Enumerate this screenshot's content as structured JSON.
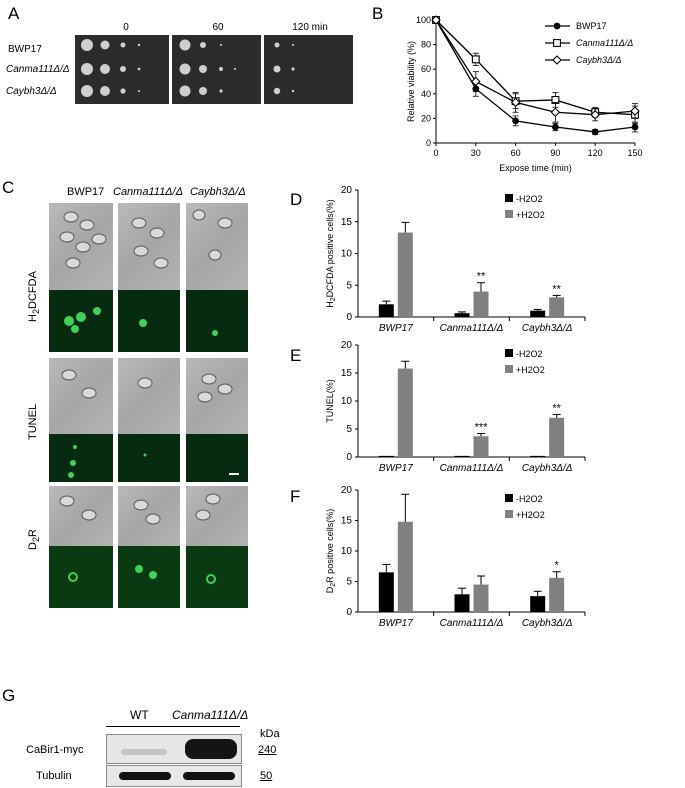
{
  "panels": {
    "a": "A",
    "b": "B",
    "c": "C",
    "d": "D",
    "e": "E",
    "f": "F",
    "g": "G"
  },
  "panel_a": {
    "time_labels": [
      "0",
      "60",
      "120 min"
    ],
    "strains": [
      "BWP17",
      "Canma111Δ/Δ",
      "Caybh3Δ/Δ"
    ]
  },
  "panel_c": {
    "columns": [
      "BWP17",
      "Canma111Δ/Δ",
      "Caybh3Δ/Δ"
    ],
    "rows": [
      "H2DCFDA",
      "TUNEL",
      "D2R"
    ]
  },
  "panel_g": {
    "columns": [
      "WT",
      "Canma111Δ/Δ"
    ],
    "kda_label": "kDa",
    "rows": [
      {
        "label": "CaBir1-myc",
        "kda": "240"
      },
      {
        "label": "Tubulin",
        "kda": "50"
      }
    ]
  },
  "colors": {
    "black_bar": "#000000",
    "grey_bar": "#808080"
  },
  "chart_data": [
    {
      "id": "B",
      "type": "line",
      "xlabel": "Expose time (min)",
      "ylabel": "Relative viability (%)",
      "x": [
        0,
        30,
        60,
        90,
        120,
        150
      ],
      "xlim": [
        0,
        150
      ],
      "ylim": [
        0,
        100
      ],
      "xticks": [
        "0",
        "30",
        "60",
        "90",
        "120",
        "150"
      ],
      "yticks": [
        "0",
        "20",
        "40",
        "60",
        "80",
        "100"
      ],
      "legend_position": "top-right",
      "series": [
        {
          "name": "BWP17",
          "marker": "filled-circle",
          "values": [
            100,
            44,
            18,
            13,
            9,
            13
          ],
          "errors": [
            0,
            6,
            4,
            3,
            2,
            4
          ]
        },
        {
          "name": "Canma111Δ/Δ",
          "marker": "open-square",
          "values": [
            100,
            68,
            34,
            35,
            25,
            23
          ],
          "errors": [
            0,
            5,
            6,
            6,
            4,
            7
          ]
        },
        {
          "name": "Caybh3Δ/Δ",
          "marker": "open-diamond",
          "values": [
            100,
            50,
            33,
            25,
            23,
            26
          ],
          "errors": [
            0,
            8,
            8,
            8,
            5,
            6
          ]
        }
      ]
    },
    {
      "id": "D",
      "type": "bar",
      "ylabel": "H2DCFDA positive cells(%)",
      "categories": [
        "BWP17",
        "Canma111Δ/Δ",
        "Caybh3Δ/Δ"
      ],
      "ylim": [
        0,
        20
      ],
      "yticks": [
        "0",
        "5",
        "10",
        "15",
        "20"
      ],
      "legend_position": "top-right",
      "series": [
        {
          "name": "-H2O2",
          "values": [
            2.0,
            0.6,
            1.0
          ],
          "errors": [
            0.5,
            0.2,
            0.2
          ]
        },
        {
          "name": "+H2O2",
          "values": [
            13.3,
            4.0,
            3.1
          ],
          "errors": [
            1.6,
            1.4,
            0.3
          ]
        }
      ],
      "annotations": [
        "",
        "**",
        "**"
      ]
    },
    {
      "id": "E",
      "type": "bar",
      "ylabel": "TUNEL(%)",
      "categories": [
        "BWP17",
        "Canma111Δ/Δ",
        "Caybh3Δ/Δ"
      ],
      "ylim": [
        0,
        20
      ],
      "yticks": [
        "0",
        "5",
        "10",
        "15",
        "20"
      ],
      "legend_position": "top-right",
      "series": [
        {
          "name": "-H2O2",
          "values": [
            0.2,
            0.2,
            0.2
          ],
          "errors": [
            0,
            0,
            0
          ]
        },
        {
          "name": "+H2O2",
          "values": [
            15.8,
            3.7,
            7.0
          ],
          "errors": [
            1.3,
            0.5,
            0.6
          ]
        }
      ],
      "annotations": [
        "",
        "***",
        "**"
      ]
    },
    {
      "id": "F",
      "type": "bar",
      "ylabel": "D2R positive cells(%)",
      "categories": [
        "BWP17",
        "Canma111Δ/Δ",
        "Caybh3Δ/Δ"
      ],
      "ylim": [
        0,
        20
      ],
      "yticks": [
        "0",
        "5",
        "10",
        "15",
        "20"
      ],
      "legend_position": "top-right",
      "series": [
        {
          "name": "-H2O2",
          "values": [
            6.5,
            2.9,
            2.6
          ],
          "errors": [
            1.3,
            1.0,
            0.8
          ]
        },
        {
          "name": "+H2O2",
          "values": [
            14.8,
            4.5,
            5.6
          ],
          "errors": [
            4.5,
            1.4,
            1.0
          ]
        }
      ],
      "annotations": [
        "",
        "",
        "*"
      ]
    }
  ]
}
